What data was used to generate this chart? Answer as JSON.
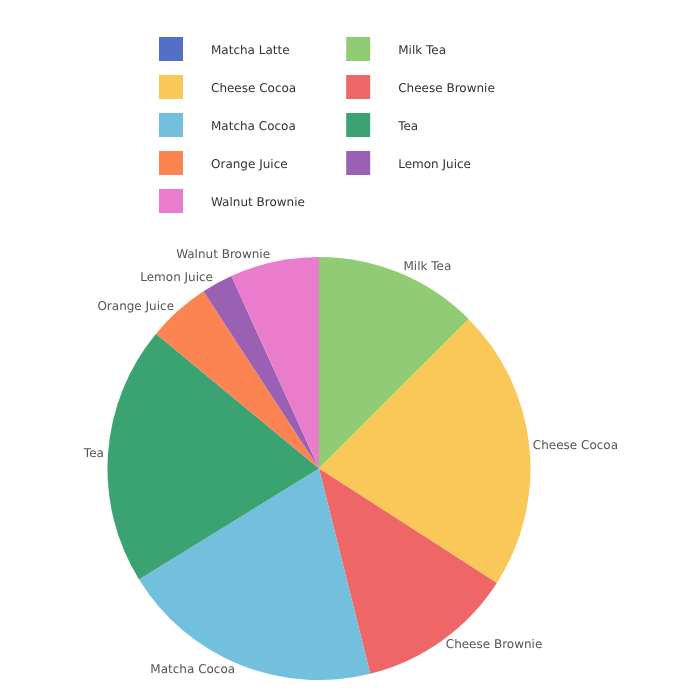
{
  "chart_data": {
    "type": "pie",
    "categories": [
      "Matcha Latte",
      "Milk Tea",
      "Cheese Cocoa",
      "Cheese Brownie",
      "Matcha Cocoa",
      "Tea",
      "Orange Juice",
      "Lemon Juice",
      "Walnut Brownie"
    ],
    "values": [
      0,
      12.5,
      21.6,
      12,
      20.1,
      19.8,
      4.8,
      2.4,
      6.8
    ],
    "colors": [
      "#5470c6",
      "#91cc75",
      "#fac858",
      "#ee6666",
      "#73c0de",
      "#3ba272",
      "#fc8452",
      "#9a60b4",
      "#ea7ccc"
    ],
    "legend": "top"
  }
}
